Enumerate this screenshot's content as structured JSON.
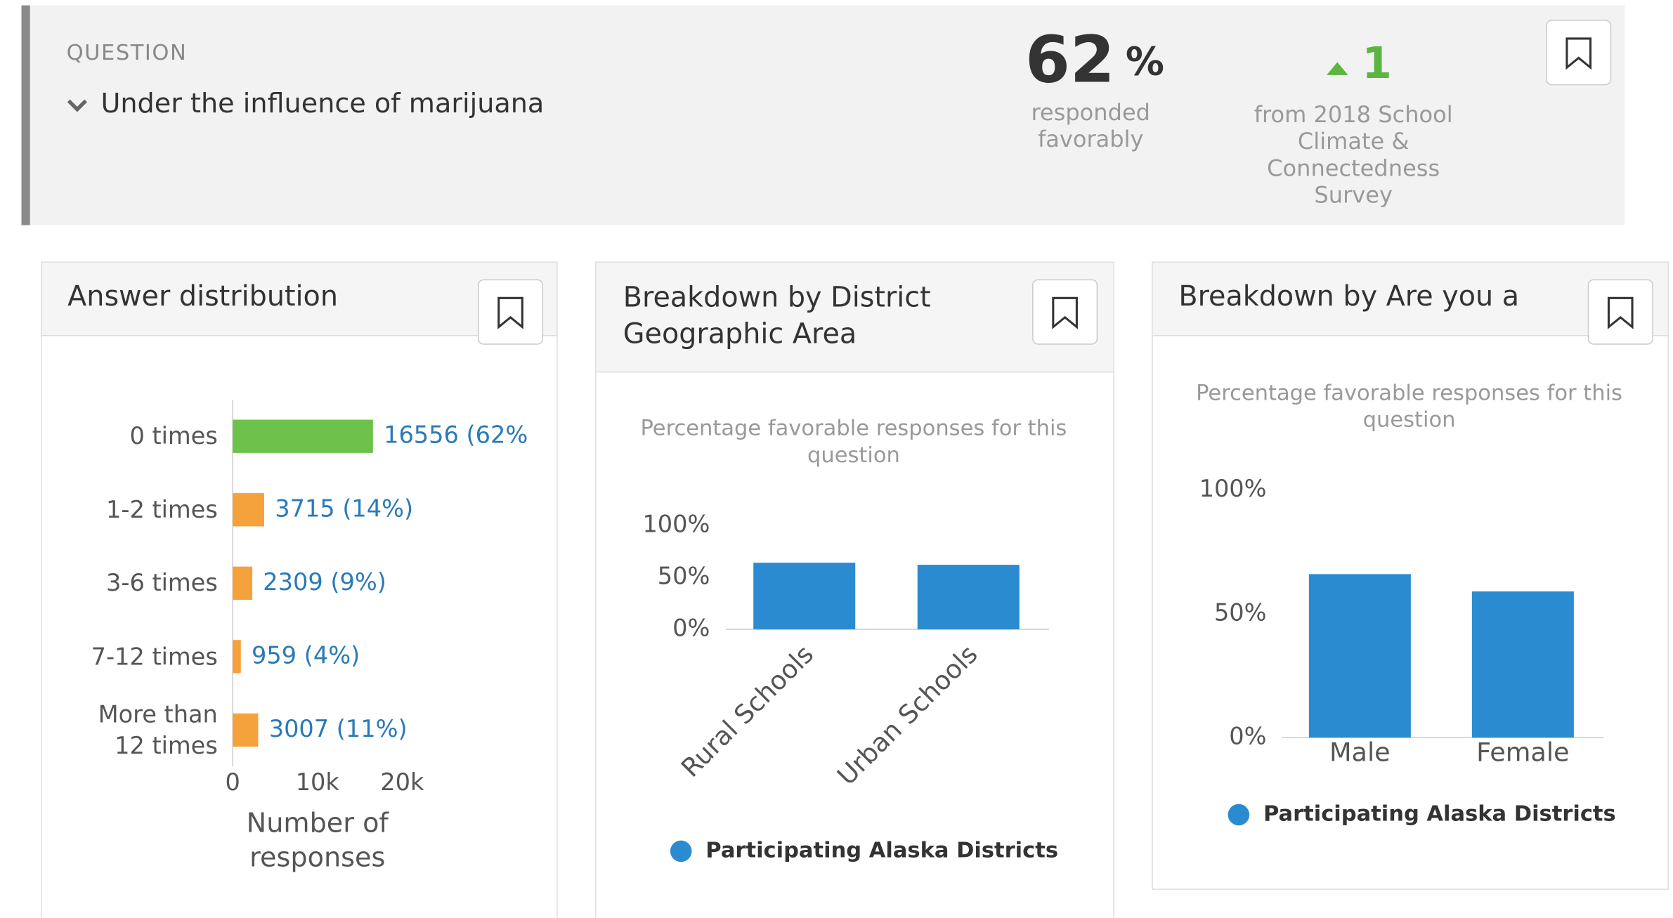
{
  "question": {
    "label": "QUESTION",
    "text": "Under the influence of marijuana"
  },
  "favorable": {
    "value": 62,
    "unit": "%",
    "caption": "responded favorably"
  },
  "change": {
    "value": 1,
    "caption": "from 2018 School Climate & Connectedness Survey"
  },
  "chart_data": [
    {
      "type": "bar",
      "horizontal": true,
      "title": "Answer distribution",
      "categories": [
        "0 times",
        "1-2 times",
        "3-6 times",
        "7-12 times",
        "More than 12 times"
      ],
      "values": [
        16556,
        3715,
        2309,
        959,
        3007
      ],
      "value_labels": [
        "16556 (62%)",
        "3715 (14%)",
        "2309 (9%)",
        "959 (4%)",
        "3007 (11%)"
      ],
      "colors": [
        "#6cc24a",
        "#f5a23c",
        "#f5a23c",
        "#f5a23c",
        "#f5a23c"
      ],
      "xlim": [
        0,
        20000
      ],
      "xticks": [
        0,
        {
          "value": 10000,
          "label": "10k"
        },
        {
          "value": 20000,
          "label": "20k"
        }
      ],
      "xlabel": "Number of responses",
      "grid": false
    },
    {
      "type": "bar",
      "title": "Breakdown by District Geographic Area",
      "subtitle": "Percentage favorable responses for this question",
      "categories": [
        "Rural Schools",
        "Urban Schools"
      ],
      "series": [
        {
          "name": "Participating Alaska Districts",
          "color": "#2a8bd0",
          "values": [
            64,
            62
          ]
        }
      ],
      "ylim": [
        0,
        100
      ],
      "yticks": [
        {
          "value": 0,
          "label": "0%"
        },
        {
          "value": 50,
          "label": "50%"
        },
        {
          "value": 100,
          "label": "100%"
        }
      ],
      "rotate_labels": true,
      "grid": false
    },
    {
      "type": "bar",
      "title": "Breakdown by Are you a",
      "subtitle": "Percentage favorable responses for this question",
      "categories": [
        "Male",
        "Female"
      ],
      "series": [
        {
          "name": "Participating Alaska Districts",
          "color": "#2a8bd0",
          "values": [
            66,
            59
          ]
        }
      ],
      "ylim": [
        0,
        100
      ],
      "yticks": [
        {
          "value": 0,
          "label": "0%"
        },
        {
          "value": 50,
          "label": "50%"
        },
        {
          "value": 100,
          "label": "100%"
        }
      ],
      "rotate_labels": false,
      "grid": false
    }
  ]
}
